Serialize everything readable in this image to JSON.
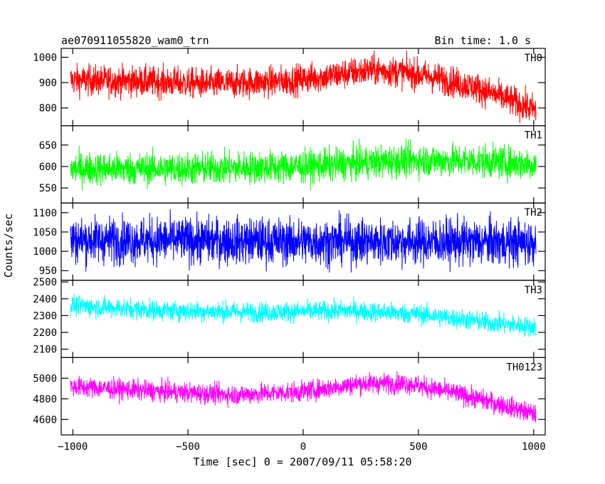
{
  "header": {
    "title": "ae070911055820_wam0_trn",
    "bin_time": "Bin time: 1.0 s"
  },
  "chart_data": {
    "type": "line",
    "xlabel": "Time [sec] 0 = 2007/09/11 05:58:20",
    "ylabel": "Counts/sec",
    "xlim": [
      -1050,
      1050
    ],
    "x_ticks": [
      -1000,
      -500,
      0,
      500,
      1000
    ],
    "x_tick_labels": [
      "−1000",
      "−500",
      "0",
      "500",
      "1000"
    ],
    "x_range_data": [
      -1010,
      1010
    ],
    "panels": [
      {
        "name": "TH0",
        "color": "#ff0000",
        "ylim": [
          730,
          1035
        ],
        "y_ticks": [
          800,
          900,
          1000
        ],
        "trend": [
          [
            -1010,
            910
          ],
          [
            -700,
            905
          ],
          [
            -400,
            895
          ],
          [
            -100,
            905
          ],
          [
            100,
            925
          ],
          [
            300,
            950
          ],
          [
            450,
            940
          ],
          [
            600,
            915
          ],
          [
            750,
            880
          ],
          [
            900,
            830
          ],
          [
            1010,
            790
          ]
        ],
        "noise": 55
      },
      {
        "name": "TH1",
        "color": "#00ff00",
        "ylim": [
          515,
          695
        ],
        "y_ticks": [
          550,
          600,
          650
        ],
        "trend": [
          [
            -1010,
            595
          ],
          [
            -500,
            595
          ],
          [
            0,
            600
          ],
          [
            300,
            610
          ],
          [
            500,
            615
          ],
          [
            800,
            612
          ],
          [
            1010,
            605
          ]
        ],
        "noise": 35
      },
      {
        "name": "TH2",
        "color": "#0000ff",
        "ylim": [
          925,
          1125
        ],
        "y_ticks": [
          950,
          1000,
          1050,
          1100
        ],
        "trend": [
          [
            -1010,
            1030
          ],
          [
            -500,
            1028
          ],
          [
            0,
            1025
          ],
          [
            500,
            1025
          ],
          [
            1010,
            1022
          ]
        ],
        "noise": 55
      },
      {
        "name": "TH3",
        "color": "#00ffff",
        "ylim": [
          2050,
          2510
        ],
        "y_ticks": [
          2100,
          2200,
          2300,
          2400,
          2500
        ],
        "trend": [
          [
            -1010,
            2360
          ],
          [
            -600,
            2330
          ],
          [
            -200,
            2320
          ],
          [
            200,
            2330
          ],
          [
            500,
            2310
          ],
          [
            800,
            2260
          ],
          [
            1010,
            2230
          ]
        ],
        "noise": 55
      },
      {
        "name": "TH0123",
        "color": "#ff00ff",
        "ylim": [
          4450,
          5200
        ],
        "y_ticks": [
          4600,
          4800,
          5000
        ],
        "trend": [
          [
            -1010,
            4920
          ],
          [
            -600,
            4870
          ],
          [
            -300,
            4840
          ],
          [
            0,
            4870
          ],
          [
            250,
            4950
          ],
          [
            450,
            4950
          ],
          [
            650,
            4860
          ],
          [
            850,
            4750
          ],
          [
            1010,
            4650
          ]
        ],
        "noise": 90
      }
    ]
  }
}
